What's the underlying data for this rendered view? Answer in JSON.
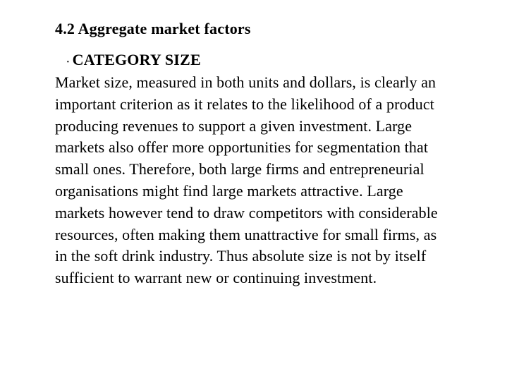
{
  "section": {
    "heading": "4.2 Aggregate market factors",
    "heading_fontsize": 22,
    "heading_fontweight": "bold"
  },
  "bullet": {
    "marker": "·",
    "title": "CATEGORY SIZE",
    "title_fontsize": 22,
    "title_fontweight": "bold"
  },
  "paragraph": {
    "text": "Market size, measured in both units and dollars, is clearly an important criterion as it relates to the likelihood of a product producing revenues to support a given investment. Large markets also offer more opportunities for segmentation that small ones. Therefore, both large firms and entrepreneurial organisations might find large markets attractive. Large markets however tend to draw competitors with considerable resources, often making them unattractive for small firms, as in the soft drink industry. Thus absolute size is not by itself sufficient to warrant new or continuing investment.",
    "fontsize": 22,
    "line_height": 1.4
  },
  "colors": {
    "background": "#ffffff",
    "text": "#000000"
  },
  "typography": {
    "font_family": "Times New Roman"
  }
}
